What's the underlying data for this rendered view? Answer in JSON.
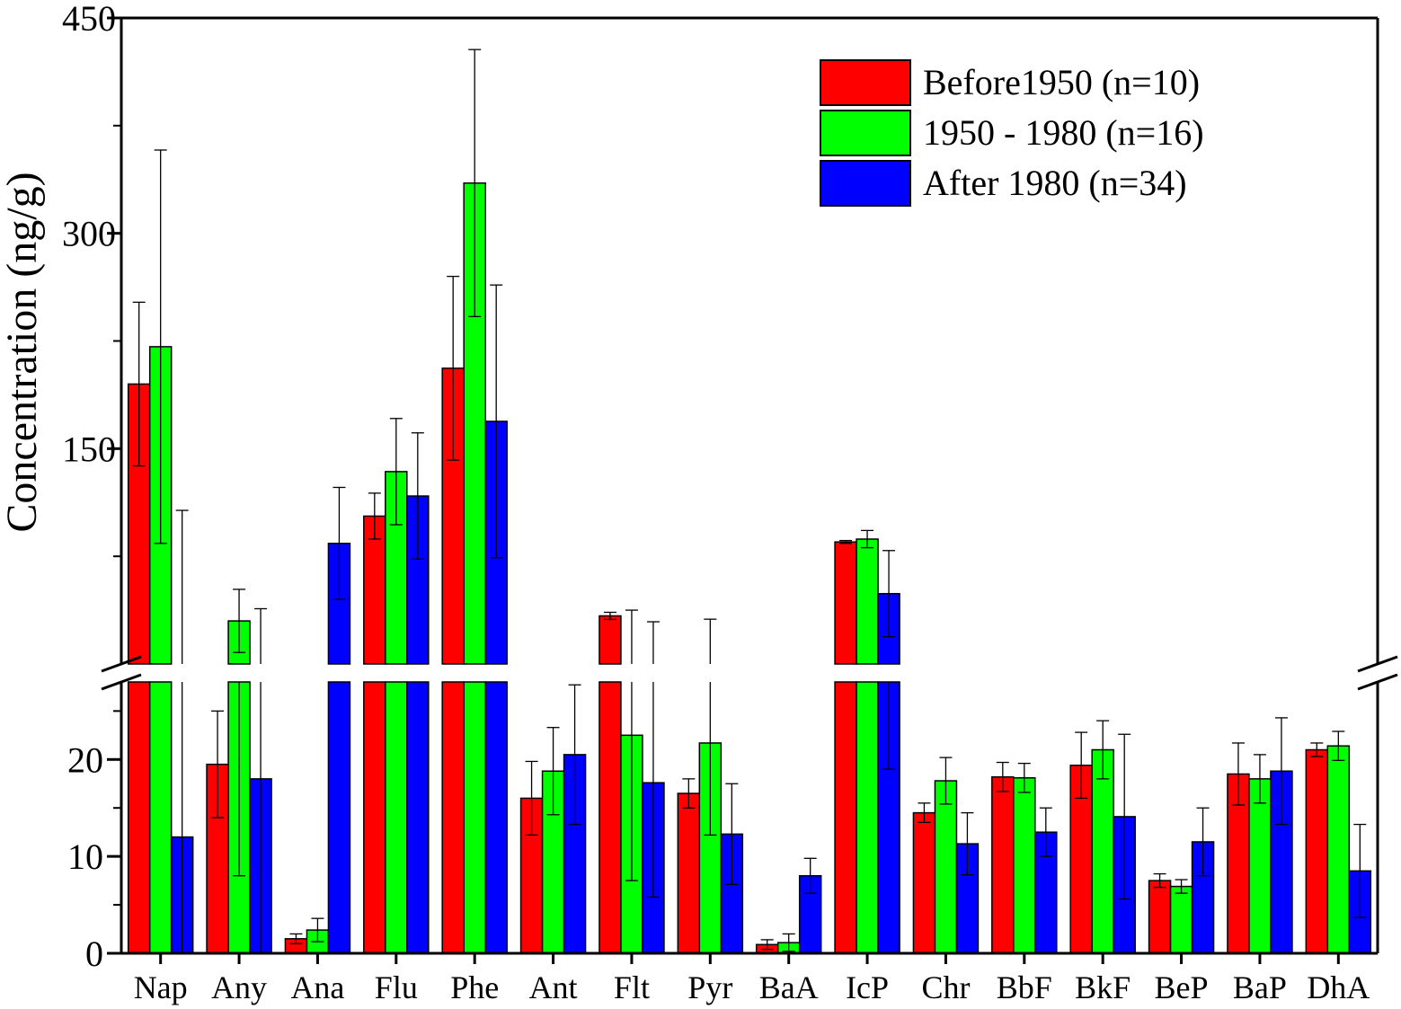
{
  "chart_data": {
    "type": "bar",
    "ylabel": "Concentration (ng/g)",
    "categories": [
      "Nap",
      "Any",
      "Ana",
      "Flu",
      "Phe",
      "Ant",
      "Flt",
      "Pyr",
      "BaA",
      "IcP",
      "Chr",
      "BbF",
      "BkF",
      "BeP",
      "BaP",
      "DhA"
    ],
    "series": [
      {
        "name": "Before1950 (n=10)",
        "color": "#ff0000",
        "values": [
          195,
          19.5,
          1.5,
          103,
          206,
          16,
          33.5,
          16.5,
          0.9,
          85,
          14.5,
          18.2,
          19.4,
          7.5,
          18.5,
          21
        ],
        "errors": [
          57,
          5.5,
          0.5,
          16,
          64,
          3.8,
          2.5,
          1.5,
          0.5,
          1,
          1,
          1.5,
          3.4,
          0.7,
          3.2,
          0.7
        ]
      },
      {
        "name": "1950 - 1980 (n=16)",
        "color": "#00ff00",
        "values": [
          221,
          30,
          2.4,
          134,
          335,
          18.8,
          22.5,
          21.7,
          1.1,
          87,
          17.8,
          18.1,
          21,
          6.9,
          18,
          21.4
        ],
        "errors": [
          137,
          22,
          1.2,
          37,
          93,
          4.5,
          15,
          9.5,
          0.9,
          6,
          2.4,
          1.5,
          3,
          0.7,
          2.5,
          1.5
        ]
      },
      {
        "name": "After 1980  (n=34)",
        "color": "#0000ff",
        "values": [
          12,
          18,
          84,
          117,
          169,
          20.5,
          17.6,
          12.3,
          8,
          49,
          11.3,
          12.5,
          14.1,
          11.5,
          18.8,
          8.5
        ],
        "errors": [
          95,
          20.5,
          39,
          44,
          95,
          7.2,
          11.8,
          5.2,
          1.8,
          30,
          3.2,
          2.5,
          8.5,
          3.5,
          5.5,
          4.8
        ]
      }
    ],
    "axis_break": {
      "lower_range": [
        0,
        28
      ],
      "upper_range": [
        0,
        450
      ]
    },
    "yticks_lower": [
      "0",
      "10",
      "20"
    ],
    "yticks_upper": [
      "150",
      "300",
      "450"
    ],
    "legend_position": "top-right",
    "grid": false
  }
}
